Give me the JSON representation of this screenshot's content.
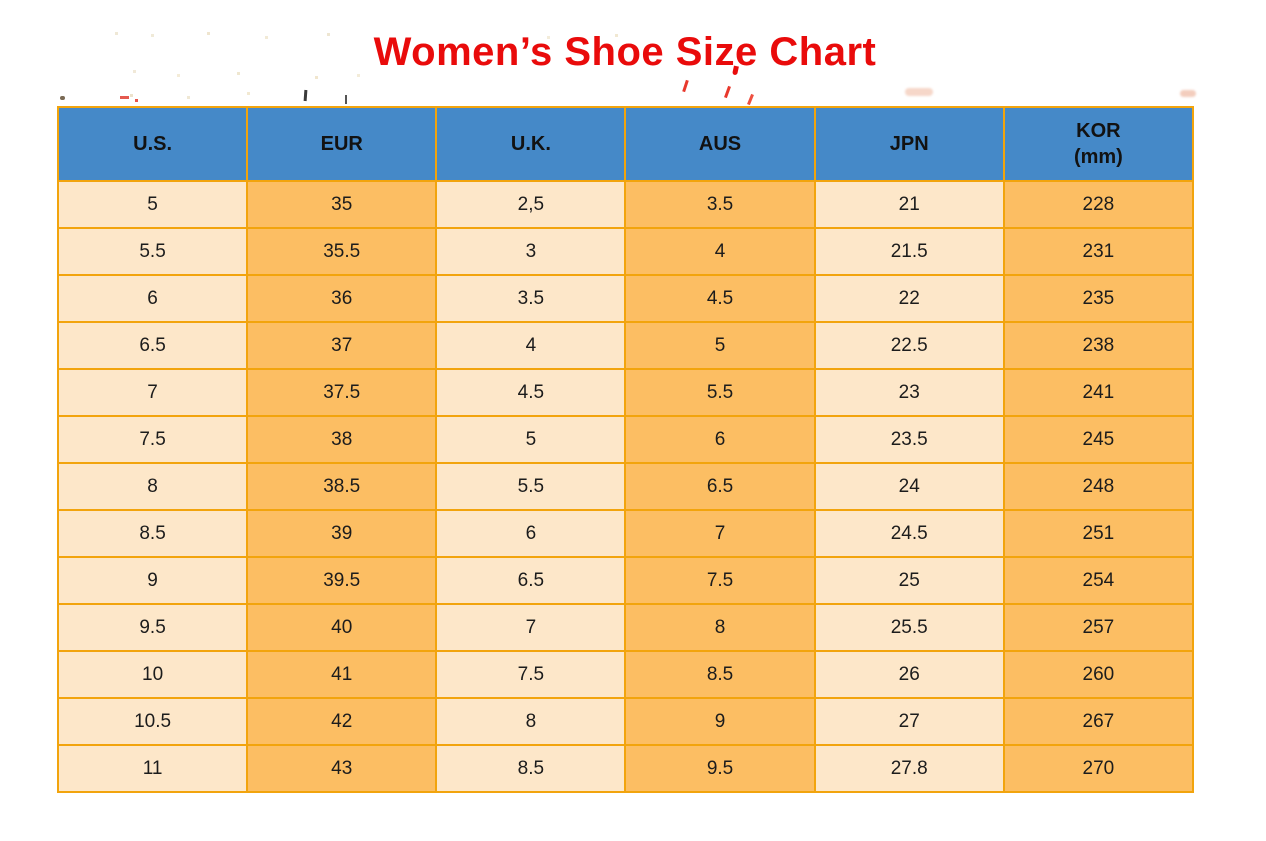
{
  "title": "Women’s Shoe Size Chart",
  "colors": {
    "title_red": "#e90b0b",
    "header_blue": "#4589c8",
    "col_cream": "#fde7c9",
    "col_orange": "#fcbe63",
    "border_orange": "#f2a40d",
    "cell_text": "#1c1c1c"
  },
  "table": {
    "columns": [
      {
        "label": "U.S."
      },
      {
        "label": "EUR"
      },
      {
        "label": "U.K."
      },
      {
        "label": "AUS"
      },
      {
        "label": "JPN"
      },
      {
        "label": "KOR",
        "sublabel": "(mm)"
      }
    ],
    "rows": [
      [
        "5",
        "35",
        "2,5",
        "3.5",
        "21",
        "228"
      ],
      [
        "5.5",
        "35.5",
        "3",
        "4",
        "21.5",
        "231"
      ],
      [
        "6",
        "36",
        "3.5",
        "4.5",
        "22",
        "235"
      ],
      [
        "6.5",
        "37",
        "4",
        "5",
        "22.5",
        "238"
      ],
      [
        "7",
        "37.5",
        "4.5",
        "5.5",
        "23",
        "241"
      ],
      [
        "7.5",
        "38",
        "5",
        "6",
        "23.5",
        "245"
      ],
      [
        "8",
        "38.5",
        "5.5",
        "6.5",
        "24",
        "248"
      ],
      [
        "8.5",
        "39",
        "6",
        "7",
        "24.5",
        "251"
      ],
      [
        "9",
        "39.5",
        "6.5",
        "7.5",
        "25",
        "254"
      ],
      [
        "9.5",
        "40",
        "7",
        "8",
        "25.5",
        "257"
      ],
      [
        "10",
        "41",
        "7.5",
        "8.5",
        "26",
        "260"
      ],
      [
        "10.5",
        "42",
        "8",
        "9",
        "27",
        "267"
      ],
      [
        "11",
        "43",
        "8.5",
        "9.5",
        "27.8",
        "270"
      ]
    ]
  },
  "chart_data": {
    "type": "table",
    "title": "Women’s Shoe Size Chart",
    "columns": [
      "U.S.",
      "EUR",
      "U.K.",
      "AUS",
      "JPN",
      "KOR (mm)"
    ],
    "rows": [
      [
        "5",
        "35",
        "2,5",
        "3.5",
        "21",
        "228"
      ],
      [
        "5.5",
        "35.5",
        "3",
        "4",
        "21.5",
        "231"
      ],
      [
        "6",
        "36",
        "3.5",
        "4.5",
        "22",
        "235"
      ],
      [
        "6.5",
        "37",
        "4",
        "5",
        "22.5",
        "238"
      ],
      [
        "7",
        "37.5",
        "4.5",
        "5.5",
        "23",
        "241"
      ],
      [
        "7.5",
        "38",
        "5",
        "6",
        "23.5",
        "245"
      ],
      [
        "8",
        "38.5",
        "5.5",
        "6.5",
        "24",
        "248"
      ],
      [
        "8.5",
        "39",
        "6",
        "7",
        "24.5",
        "251"
      ],
      [
        "9",
        "39.5",
        "6.5",
        "7.5",
        "25",
        "254"
      ],
      [
        "9.5",
        "40",
        "7",
        "8",
        "25.5",
        "257"
      ],
      [
        "10",
        "41",
        "7.5",
        "8.5",
        "26",
        "260"
      ],
      [
        "10.5",
        "42",
        "8",
        "9",
        "27",
        "267"
      ],
      [
        "11",
        "43",
        "8.5",
        "9.5",
        "27.8",
        "270"
      ]
    ],
    "layout": {
      "header_fill": "#4589c8",
      "column_fills_alternating": [
        "#fde7c9",
        "#fcbe63"
      ],
      "grid": true,
      "title_color": "#e90b0b"
    }
  }
}
